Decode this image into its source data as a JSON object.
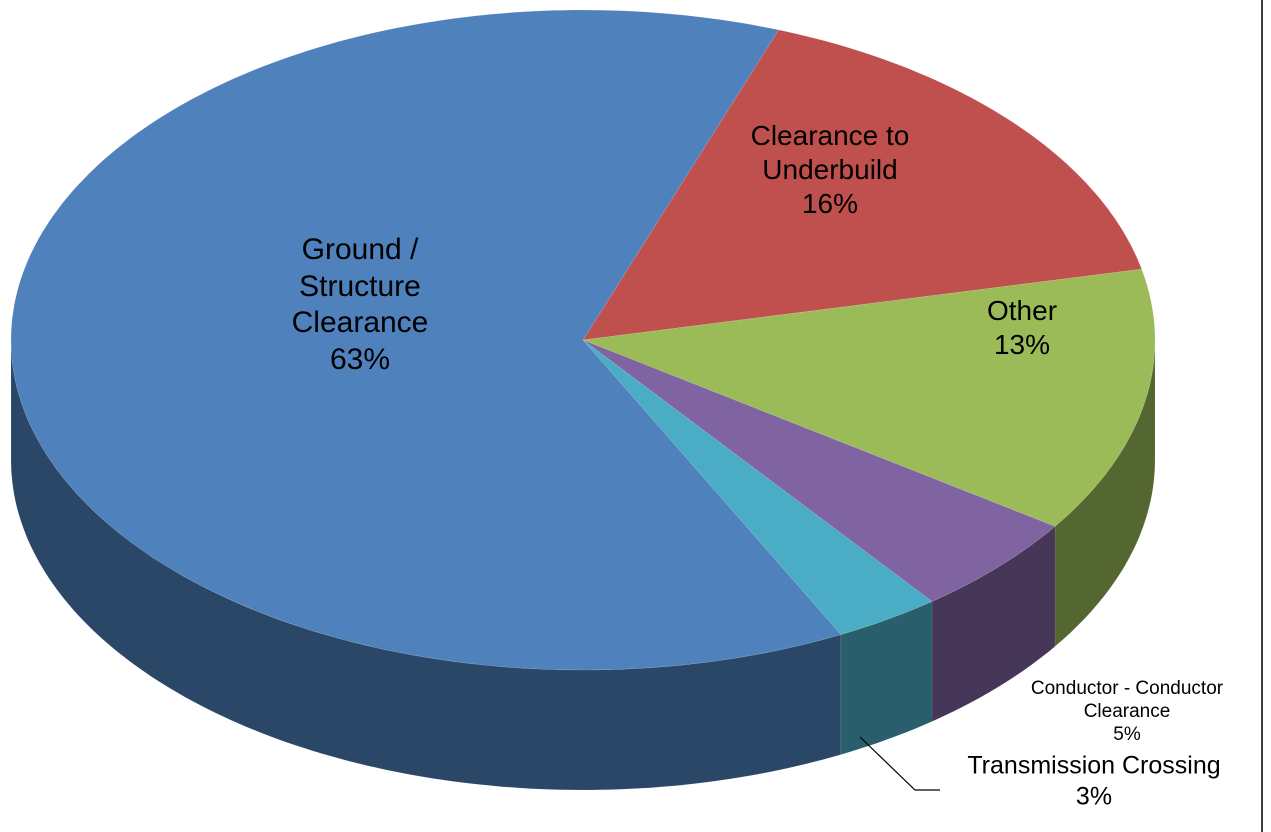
{
  "chart_data": {
    "type": "pie",
    "three_d": true,
    "categories": [
      "Clearance to Underbuild",
      "Other",
      "Conductor - Conductor Clearance",
      "Transmission Crossing",
      "Ground / Structure Clearance"
    ],
    "values": [
      16,
      13,
      5,
      3,
      63
    ],
    "value_labels": [
      "16%",
      "13%",
      "5%",
      "3%",
      "63%"
    ],
    "colors": [
      "#c0504d",
      "#9bbb59",
      "#8064a2",
      "#4bacc6",
      "#4f81bd"
    ]
  }
}
